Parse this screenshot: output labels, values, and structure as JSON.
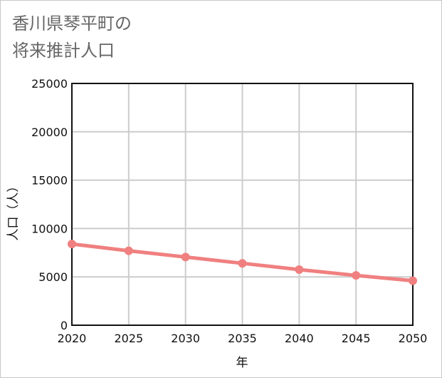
{
  "chart_data": {
    "type": "line",
    "title_lines": [
      "香川県琴平町の",
      "将来推計人口"
    ],
    "xlabel": "年",
    "ylabel": "人口（人）",
    "ylim": [
      0,
      25000
    ],
    "xlim": [
      2020,
      2050
    ],
    "y_ticks": [
      0,
      5000,
      10000,
      15000,
      20000,
      25000
    ],
    "x_ticks": [
      2020,
      2025,
      2030,
      2035,
      2040,
      2045,
      2050
    ],
    "grid": true,
    "series": [
      {
        "name": "人口",
        "color": "#f08080",
        "x": [
          2020,
          2025,
          2030,
          2035,
          2040,
          2045,
          2050
        ],
        "values": [
          8400,
          7700,
          7050,
          6400,
          5750,
          5150,
          4600
        ]
      }
    ]
  }
}
